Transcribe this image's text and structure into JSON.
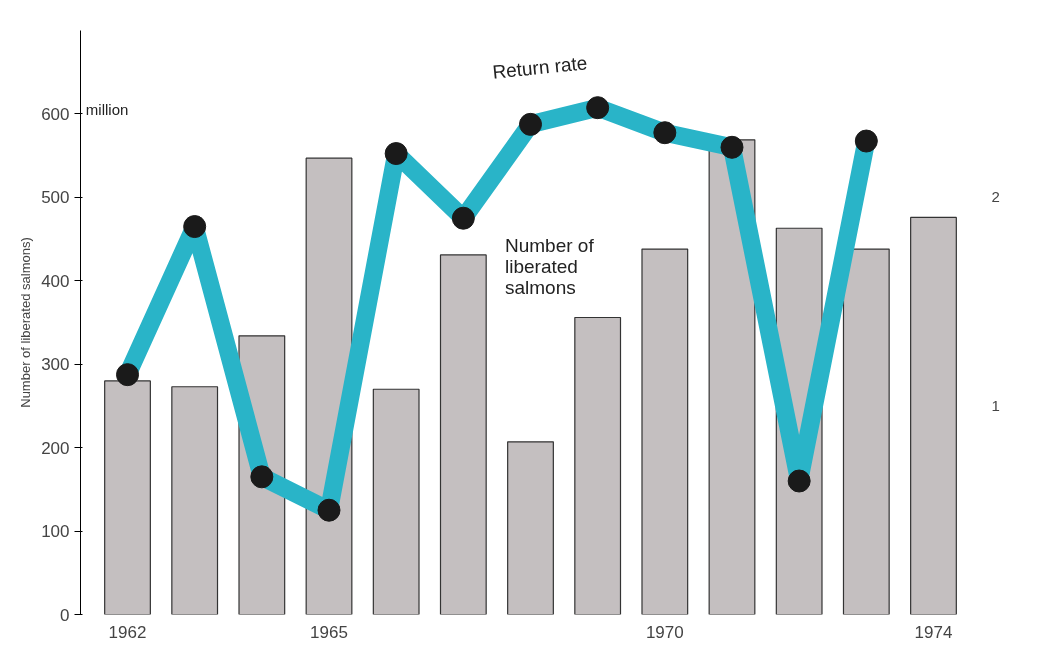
{
  "chart_data": {
    "type": "bar",
    "ylabel": "Number of liberated salmons)",
    "categories": [
      "1962",
      null,
      null,
      "1965",
      null,
      null,
      null,
      null,
      "1970",
      null,
      null,
      null,
      "1974"
    ],
    "series": [
      {
        "color": "#c4bfc0",
        "values": [
          280,
          273,
          334,
          547,
          270,
          431,
          207,
          356,
          438,
          569,
          463,
          438,
          476
        ]
      },
      {
        "type": "line",
        "axis": "y2",
        "color": "#29b4c8",
        "marker": "circle",
        "values": [
          1.15,
          1.86,
          0.66,
          0.5,
          2.21,
          1.9,
          2.35,
          2.43,
          2.31,
          2.24,
          0.64,
          2.27,
          null
        ]
      }
    ],
    "ylim": [
      0,
      700
    ],
    "yticks": [
      0,
      100,
      200,
      300,
      400,
      500,
      600
    ],
    "y2lim": [
      0,
      2.8
    ],
    "y2ticks": [
      1,
      2
    ],
    "grid": false,
    "annotations": [
      "million",
      "Return rate",
      "Number of\nliberated\nsalmons"
    ]
  }
}
